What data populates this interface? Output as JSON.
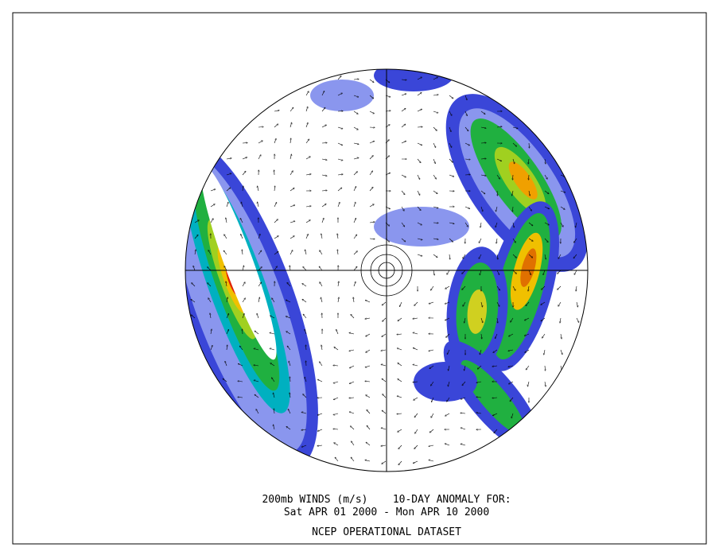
{
  "caption": {
    "line1": "200mb WINDS (m/s)    10-DAY ANOMALY FOR:",
    "line2": "Sat APR 01 2000 - Mon APR 10 2000",
    "line3": "NCEP OPERATIONAL DATASET"
  }
}
